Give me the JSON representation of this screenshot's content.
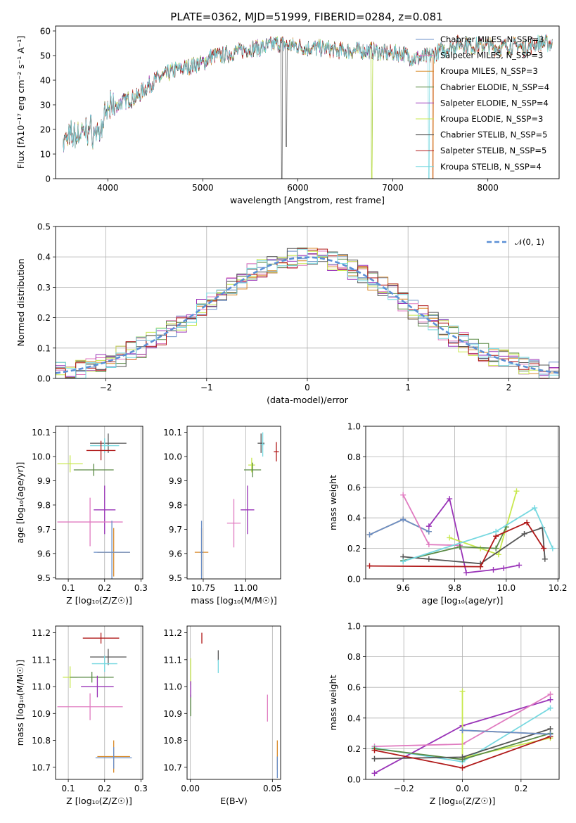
{
  "chart_data": [
    {
      "type": "line",
      "title": "PLATE=0362, MJD=51999, FIBERID=0284, z=0.081",
      "xlabel": "wavelength [Angstrom, rest frame]",
      "ylabel": "Flux [fλ10⁻¹⁷ erg cm⁻² s⁻¹ A⁻¹]",
      "xlim": [
        3450,
        8750
      ],
      "ylim": [
        0,
        62
      ],
      "xticks": [
        "4000",
        "5000",
        "6000",
        "7000",
        "8000"
      ],
      "yticks": [
        "0",
        "10",
        "20",
        "30",
        "40",
        "50",
        "60"
      ],
      "legend_position": "top-right",
      "spectrum_envelope": {
        "x": [
          3530,
          3600,
          3700,
          3800,
          3900,
          3950,
          4000,
          4100,
          4200,
          4300,
          4400,
          4500,
          4600,
          4700,
          4800,
          4900,
          5000,
          5100,
          5200,
          5300,
          5400,
          5500,
          5600,
          5700,
          5800,
          5900,
          6000,
          6100,
          6200,
          6300,
          6400,
          6500,
          6600,
          6700,
          6800,
          6900,
          7000,
          7100,
          7200,
          7300,
          7400,
          7500,
          7600,
          7700,
          7800,
          7900,
          8000,
          8100,
          8200,
          8300,
          8400,
          8500,
          8600,
          8680
        ],
        "y": [
          15,
          17,
          18,
          20,
          18,
          22,
          28,
          30,
          32,
          33,
          37,
          40,
          42,
          44,
          45,
          46,
          47,
          50,
          50,
          51,
          52,
          53,
          53,
          54,
          55,
          54,
          54,
          53,
          53,
          53,
          52,
          52,
          52,
          52,
          52,
          51,
          51,
          51,
          49,
          49,
          50,
          52,
          53,
          55,
          54,
          54,
          54,
          53,
          54,
          54,
          53,
          55,
          55,
          55
        ]
      },
      "series": [
        {
          "name": "Chabrier MILES, N_SSP=3",
          "color": "#6a8fc8"
        },
        {
          "name": "Salpeter MILES, N_SSP=3",
          "color": "#e07bc0"
        },
        {
          "name": "Kroupa MILES, N_SSP=3",
          "color": "#d98b2b"
        },
        {
          "name": "Chabrier ELODIE, N_SSP=4",
          "color": "#5a8a45"
        },
        {
          "name": "Salpeter ELODIE, N_SSP=4",
          "color": "#9a34b8"
        },
        {
          "name": "Kroupa ELODIE, N_SSP=3",
          "color": "#c8e84f"
        },
        {
          "name": "Chabrier STELIB, N_SSP=5",
          "color": "#555555"
        },
        {
          "name": "Salpeter STELIB, N_SSP=5",
          "color": "#b01818"
        },
        {
          "name": "Kroupa STELIB, N_SSP=4",
          "color": "#76d8e0"
        }
      ]
    },
    {
      "type": "line",
      "xlabel": "(data-model)/error",
      "ylabel": "Normed distribution",
      "xlim": [
        -2.5,
        2.5
      ],
      "ylim": [
        0,
        0.5
      ],
      "xticks": [
        "−2",
        "−1",
        "0",
        "1",
        "2"
      ],
      "yticks": [
        "0.0",
        "0.1",
        "0.2",
        "0.3",
        "0.4",
        "0.5"
      ],
      "grid": true,
      "legend_position": "top-right",
      "legend_label": "𝒩(0, 1)",
      "histogram_bin_width": 0.1,
      "reference_curve": {
        "name": "𝒩(0, 1)",
        "color": "#5b8fd6",
        "style": "dashed"
      }
    },
    {
      "type": "scatter",
      "xlabel": "Z [log₁₀(Z/Z☉)]",
      "ylabel": "age [log₁₀(age/yr)]",
      "xlim": [
        0.065,
        0.305
      ],
      "ylim": [
        9.495,
        10.125
      ],
      "xticks": [
        "0.1",
        "0.2",
        "0.3"
      ],
      "yticks": [
        "9.5",
        "9.6",
        "9.7",
        "9.8",
        "9.9",
        "10.0",
        "10.1"
      ],
      "points": [
        {
          "x": 0.21,
          "y": 10.055,
          "xerr": 0.05,
          "yerr": 0.04,
          "color": "#555555"
        },
        {
          "x": 0.2,
          "y": 10.045,
          "xerr": 0.04,
          "yerr": 0.03,
          "color": "#76d8e0"
        },
        {
          "x": 0.19,
          "y": 10.025,
          "xerr": 0.04,
          "yerr": 0.04,
          "color": "#b01818"
        },
        {
          "x": 0.105,
          "y": 9.97,
          "xerr": 0.035,
          "yerr": 0.035,
          "color": "#c8e84f"
        },
        {
          "x": 0.17,
          "y": 9.945,
          "xerr": 0.055,
          "yerr": 0.025,
          "color": "#5a8a45"
        },
        {
          "x": 0.2,
          "y": 9.78,
          "xerr": 0.03,
          "yerr": 0.1,
          "color": "#9a34b8"
        },
        {
          "x": 0.16,
          "y": 9.73,
          "xerr": 0.09,
          "yerr": 0.1,
          "color": "#e07bc0"
        },
        {
          "x": 0.225,
          "y": 9.605,
          "xerr": 0.045,
          "yerr": 0.1,
          "color": "#d98b2b"
        },
        {
          "x": 0.22,
          "y": 9.605,
          "xerr": 0.05,
          "yerr": 0.13,
          "color": "#6a8fc8"
        }
      ]
    },
    {
      "type": "scatter",
      "xlabel": "mass [log₁₀(M/M☉)]",
      "xlim": [
        10.655,
        11.205
      ],
      "ylim": [
        9.495,
        10.125
      ],
      "xticks": [
        "10.75",
        "11.00"
      ],
      "yticks": [
        "9.5",
        "9.6",
        "9.7",
        "9.8",
        "9.9",
        "10.0",
        "10.1"
      ],
      "points": [
        {
          "x": 11.09,
          "y": 10.055,
          "xerr": 0.02,
          "yerr": 0.04,
          "color": "#555555"
        },
        {
          "x": 11.1,
          "y": 10.05,
          "xerr": 0.01,
          "yerr": 0.05,
          "color": "#76d8e0"
        },
        {
          "x": 11.18,
          "y": 10.02,
          "xerr": 0.015,
          "yerr": 0.04,
          "color": "#b01818"
        },
        {
          "x": 11.035,
          "y": 9.965,
          "xerr": 0.02,
          "yerr": 0.03,
          "color": "#c8e84f"
        },
        {
          "x": 11.04,
          "y": 9.945,
          "xerr": 0.05,
          "yerr": 0.03,
          "color": "#5a8a45"
        },
        {
          "x": 11.01,
          "y": 9.78,
          "xerr": 0.04,
          "yerr": 0.1,
          "color": "#9a34b8"
        },
        {
          "x": 10.93,
          "y": 9.725,
          "xerr": 0.04,
          "yerr": 0.1,
          "color": "#e07bc0"
        },
        {
          "x": 10.74,
          "y": 9.605,
          "xerr": 0.04,
          "yerr": 0.1,
          "color": "#d98b2b"
        },
        {
          "x": 10.74,
          "y": 9.605,
          "xerr": 0.01,
          "yerr": 0.13,
          "color": "#6a8fc8"
        }
      ]
    },
    {
      "type": "line",
      "xlabel": "age [log₁₀(age/yr)]",
      "ylabel": "mass weight",
      "xlim": [
        9.455,
        10.205
      ],
      "ylim": [
        0,
        1
      ],
      "xticks": [
        "9.6",
        "9.8",
        "10.0",
        "10.2"
      ],
      "yticks": [
        "0.0",
        "0.2",
        "0.4",
        "0.6",
        "0.8",
        "1.0"
      ],
      "grid": true,
      "series": [
        {
          "name": "Kroupa MILES",
          "color": "#d98b2b",
          "x": [
            9.47,
            9.6,
            9.7
          ],
          "y": [
            0.29,
            0.39,
            0.31
          ]
        },
        {
          "name": "Chabrier MILES",
          "color": "#6a8fc8",
          "x": [
            9.47,
            9.6,
            9.7
          ],
          "y": [
            0.29,
            0.39,
            0.31
          ]
        },
        {
          "name": "Salpeter MILES",
          "color": "#e07bc0",
          "x": [
            9.6,
            9.7,
            9.82
          ],
          "y": [
            0.55,
            0.225,
            0.22
          ]
        },
        {
          "name": "Salpeter ELODIE",
          "color": "#9a34b8",
          "x": [
            9.7,
            9.78,
            9.845,
            9.95,
            9.99,
            10.05
          ],
          "y": [
            0.345,
            0.525,
            0.04,
            0.06,
            0.07,
            0.09
          ]
        },
        {
          "name": "Kroupa ELODIE",
          "color": "#c8e84f",
          "x": [
            9.78,
            9.9,
            9.97,
            10.04
          ],
          "y": [
            0.27,
            0.2,
            0.16,
            0.575
          ]
        },
        {
          "name": "Chabrier ELODIE",
          "color": "#5a8a45",
          "x": [
            9.6,
            9.82,
            9.96,
            10.0
          ],
          "y": [
            0.12,
            0.21,
            0.2,
            0.34
          ]
        },
        {
          "name": "Chabrier STELIB",
          "color": "#555555",
          "x": [
            9.6,
            9.7,
            9.9,
            10.07,
            10.14,
            10.15
          ],
          "y": [
            0.145,
            0.13,
            0.1,
            0.295,
            0.335,
            0.13
          ]
        },
        {
          "name": "Salpeter STELIB",
          "color": "#b01818",
          "x": [
            9.47,
            9.9,
            9.96,
            10.08,
            10.145
          ],
          "y": [
            0.085,
            0.08,
            0.28,
            0.37,
            0.2
          ]
        },
        {
          "name": "Kroupa STELIB",
          "color": "#76d8e0",
          "x": [
            9.6,
            9.96,
            10.11,
            10.18
          ],
          "y": [
            0.115,
            0.31,
            0.465,
            0.2
          ]
        }
      ]
    },
    {
      "type": "scatter",
      "xlabel": "Z [log₁₀(Z/Z☉)]",
      "ylabel": "mass [log₁₀(M/M☉)]",
      "xlim": [
        0.065,
        0.305
      ],
      "ylim": [
        10.655,
        11.225
      ],
      "xticks": [
        "0.1",
        "0.2",
        "0.3"
      ],
      "yticks": [
        "10.7",
        "10.8",
        "10.9",
        "11.0",
        "11.1",
        "11.2"
      ],
      "points": [
        {
          "x": 0.19,
          "y": 11.18,
          "xerr": 0.05,
          "yerr": 0.02,
          "color": "#b01818"
        },
        {
          "x": 0.21,
          "y": 11.11,
          "xerr": 0.05,
          "yerr": 0.03,
          "color": "#555555"
        },
        {
          "x": 0.2,
          "y": 11.085,
          "xerr": 0.035,
          "yerr": 0.03,
          "color": "#76d8e0"
        },
        {
          "x": 0.105,
          "y": 11.035,
          "xerr": 0.02,
          "yerr": 0.04,
          "color": "#c8e84f"
        },
        {
          "x": 0.165,
          "y": 11.035,
          "xerr": 0.06,
          "yerr": 0.02,
          "color": "#5a8a45"
        },
        {
          "x": 0.18,
          "y": 11.0,
          "xerr": 0.045,
          "yerr": 0.04,
          "color": "#9a34b8"
        },
        {
          "x": 0.16,
          "y": 10.925,
          "xerr": 0.09,
          "yerr": 0.05,
          "color": "#e07bc0"
        },
        {
          "x": 0.225,
          "y": 10.74,
          "xerr": 0.045,
          "yerr": 0.06,
          "color": "#d98b2b"
        },
        {
          "x": 0.225,
          "y": 10.735,
          "xerr": 0.05,
          "yerr": 0.04,
          "color": "#6a8fc8"
        }
      ]
    },
    {
      "type": "scatter",
      "xlabel": "E(B-V)",
      "xlim": [
        -0.002,
        0.055
      ],
      "ylim": [
        10.655,
        11.225
      ],
      "xticks": [
        "0.00",
        "0.05"
      ],
      "yticks": [
        "10.7",
        "10.8",
        "10.9",
        "11.0",
        "11.1",
        "11.2"
      ],
      "points": [
        {
          "x": 0.007,
          "y": 11.18,
          "yerr": 0.02,
          "color": "#b01818"
        },
        {
          "x": 0.017,
          "y": 11.115,
          "yerr": 0.02,
          "color": "#555555"
        },
        {
          "x": 0.017,
          "y": 11.075,
          "yerr": 0.025,
          "color": "#76d8e0"
        },
        {
          "x": 0.0002,
          "y": 11.055,
          "yerr": 0.05,
          "color": "#c8e84f"
        },
        {
          "x": 0.0002,
          "y": 10.93,
          "yerr": 0.04,
          "color": "#5a8a45"
        },
        {
          "x": 0.0002,
          "y": 10.99,
          "yerr": 0.03,
          "color": "#9a34b8"
        },
        {
          "x": 0.047,
          "y": 10.92,
          "yerr": 0.05,
          "color": "#e07bc0"
        },
        {
          "x": 0.053,
          "y": 10.745,
          "yerr": 0.055,
          "color": "#d98b2b"
        },
        {
          "x": 0.053,
          "y": 10.7,
          "yerr": 0.04,
          "color": "#6a8fc8"
        }
      ]
    },
    {
      "type": "line",
      "xlabel": "Z [log₁₀(Z/Z☉)]",
      "ylabel": "mass weight",
      "xlim": [
        -0.33,
        0.33
      ],
      "ylim": [
        0,
        1
      ],
      "xticks": [
        "−0.2",
        "0.0",
        "0.2"
      ],
      "yticks": [
        "0.0",
        "0.2",
        "0.4",
        "0.6",
        "0.8",
        "1.0"
      ],
      "grid": true,
      "series": [
        {
          "name": "Salpeter ELODIE",
          "color": "#9a34b8",
          "x": [
            -0.3,
            0.0,
            0.3
          ],
          "y": [
            0.04,
            0.35,
            0.52
          ]
        },
        {
          "name": "Salpeter MILES",
          "color": "#e07bc0",
          "x": [
            -0.3,
            0.0,
            0.3
          ],
          "y": [
            0.215,
            0.23,
            0.555
          ]
        },
        {
          "name": "Kroupa STELIB",
          "color": "#76d8e0",
          "x": [
            -0.3,
            0.0,
            0.3
          ],
          "y": [
            0.205,
            0.115,
            0.465
          ]
        },
        {
          "name": "Kroupa ELODIE",
          "color": "#c8e84f",
          "x": [
            0.0,
            0.0,
            0.3
          ],
          "y": [
            0.575,
            0.14,
            0.27
          ]
        },
        {
          "name": "Kroupa MILES",
          "color": "#d98b2b",
          "x": [
            0.0,
            0.3
          ],
          "y": [
            0.32,
            0.295
          ]
        },
        {
          "name": "Chabrier ELODIE",
          "color": "#5a8a45",
          "x": [
            -0.3,
            0.0,
            0.3
          ],
          "y": [
            0.2,
            0.13,
            0.3
          ]
        },
        {
          "name": "Chabrier STELIB",
          "color": "#555555",
          "x": [
            -0.3,
            0.0,
            0.3
          ],
          "y": [
            0.135,
            0.145,
            0.33
          ]
        },
        {
          "name": "Salpeter STELIB",
          "color": "#b01818",
          "x": [
            -0.3,
            0.0,
            0.3
          ],
          "y": [
            0.19,
            0.075,
            0.28
          ]
        },
        {
          "name": "Chabrier MILES",
          "color": "#6a8fc8",
          "x": [
            0.0,
            0.3
          ],
          "y": [
            0.32,
            0.295
          ]
        }
      ]
    }
  ]
}
